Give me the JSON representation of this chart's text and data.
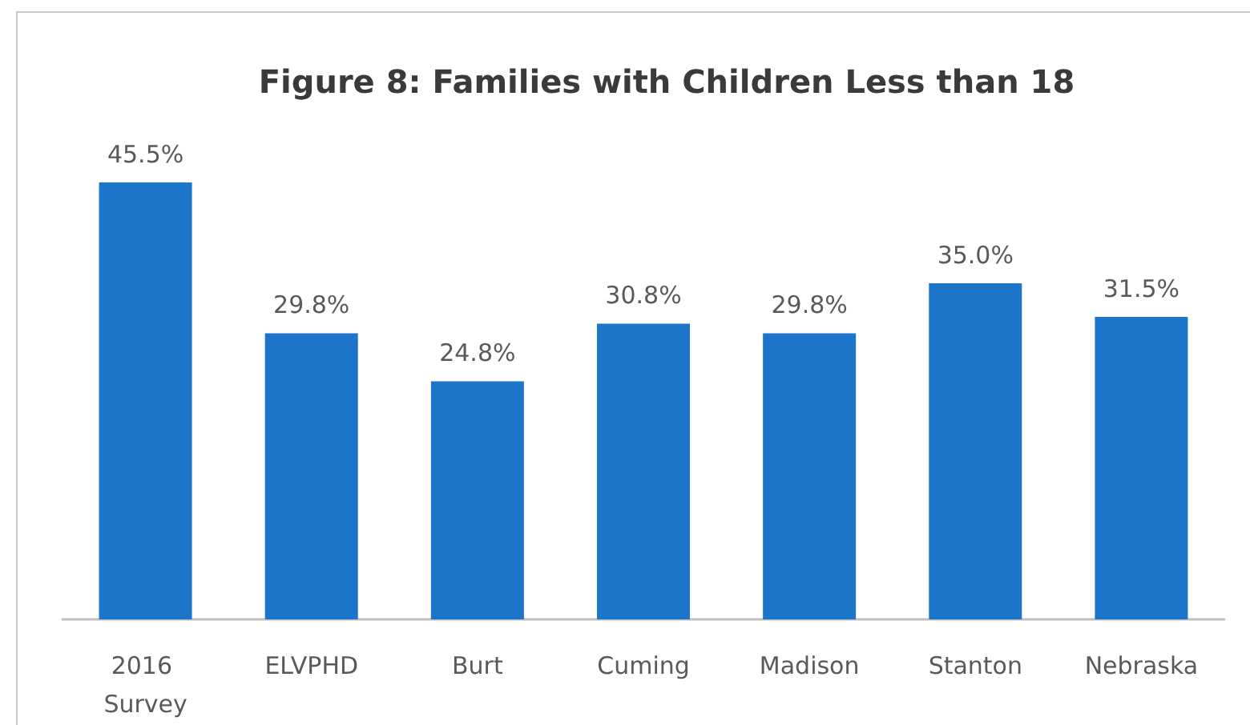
{
  "chart_data": {
    "type": "bar",
    "title": "Figure 8: Families with Children Less than 18",
    "categories": [
      "2016 Survey",
      "ELVPHD",
      "Burt",
      "Cuming",
      "Madison",
      "Stanton",
      "Nebraska"
    ],
    "values": [
      45.5,
      29.8,
      24.8,
      30.8,
      29.8,
      35.0,
      31.5
    ],
    "value_labels": [
      "45.5%",
      "29.8%",
      "24.8%",
      "30.8%",
      "29.8%",
      "35.0%",
      "31.5%"
    ],
    "color": "#1c75c9"
  }
}
